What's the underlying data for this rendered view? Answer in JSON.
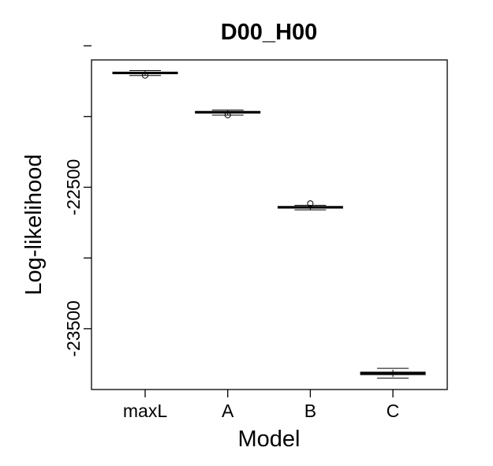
{
  "chart_data": {
    "type": "boxplot",
    "title": "D00_H00",
    "xlabel": "Model",
    "ylabel": "Log-likelihood",
    "categories": [
      "maxL",
      "A",
      "B",
      "C"
    ],
    "y_ticks": [
      -21500,
      -22000,
      -22500,
      -23000,
      -23500
    ],
    "y_tick_labels_shown": [
      "-22500",
      "-23500"
    ],
    "ylim": [
      -23930,
      -21600
    ],
    "grid": false,
    "legend": "none",
    "boxes": [
      {
        "category": "maxL",
        "whisker_low": -21710,
        "q1": -21698,
        "median": -21692,
        "q3": -21686,
        "whisker_high": -21675,
        "outliers": [
          -21710
        ]
      },
      {
        "category": "A",
        "whisker_low": -21990,
        "q1": -21976,
        "median": -21970,
        "q3": -21964,
        "whisker_high": -21955,
        "outliers": [
          -21990
        ]
      },
      {
        "category": "B",
        "whisker_low": -22660,
        "q1": -22648,
        "median": -22642,
        "q3": -22636,
        "whisker_high": -22628,
        "outliers": [
          -22615
        ]
      },
      {
        "category": "C",
        "whisker_low": -23850,
        "q1": -23825,
        "median": -23815,
        "q3": -23807,
        "whisker_high": -23780,
        "outliers": []
      }
    ]
  }
}
